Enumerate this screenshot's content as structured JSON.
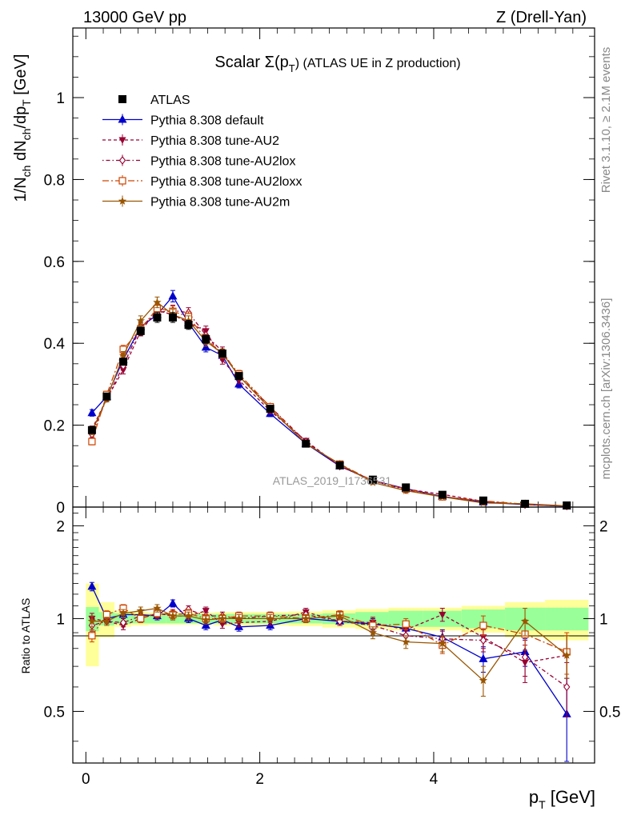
{
  "header": {
    "left": "13000 GeV pp",
    "right": "Z (Drell-Yan)"
  },
  "side_labels": {
    "rivet": "Rivet 3.1.10, ≥ 2.1M events",
    "mcplots": "mcplots.cern.ch [arXiv:1306.3436]"
  },
  "watermark": "ATLAS_2019_I1736531",
  "chart_data": [
    {
      "type": "line",
      "panel": "main",
      "title": "Scalar Σ(p_T) (ATLAS UE in Z production)",
      "title_main": "Scalar Σ(p",
      "title_sub": "T",
      "title_rest": ") (ATLAS UE in Z production)",
      "ylabel": "1/N_ch dN_ch/dp_T [GeV]",
      "xlim": [
        -0.15,
        5.85
      ],
      "ylim": [
        0,
        1.17
      ],
      "yticks": [
        0,
        0.2,
        0.4,
        0.6,
        0.8,
        1
      ],
      "ytick_labels": [
        "0",
        "0.2",
        "0.4",
        "0.6",
        "0.8",
        "1"
      ],
      "x": [
        0.07,
        0.24,
        0.43,
        0.63,
        0.82,
        1.0,
        1.18,
        1.38,
        1.57,
        1.76,
        2.12,
        2.53,
        2.92,
        3.3,
        3.68,
        4.1,
        4.57,
        5.05,
        5.53
      ],
      "series": [
        {
          "name": "ATLAS",
          "color": "#000000",
          "marker": "square-filled",
          "dash": "none",
          "values": [
            0.188,
            0.27,
            0.355,
            0.43,
            0.463,
            0.463,
            0.445,
            0.41,
            0.375,
            0.32,
            0.24,
            0.155,
            0.102,
            0.067,
            0.048,
            0.03,
            0.016,
            0.008,
            0.004
          ],
          "errors": [
            0.005,
            0.005,
            0.008,
            0.01,
            0.012,
            0.012,
            0.011,
            0.01,
            0.009,
            0.008,
            0.006,
            0.004,
            0.003,
            0.002,
            0.002,
            0.001,
            0.001,
            0.0005,
            0.0004
          ]
        },
        {
          "name": "Pythia 8.308 default",
          "color": "#0000cc",
          "marker": "triangle-up",
          "dash": "none",
          "values": [
            0.23,
            0.27,
            0.36,
            0.44,
            0.47,
            0.515,
            0.45,
            0.39,
            0.37,
            0.3,
            0.228,
            0.155,
            0.1,
            0.065,
            0.045,
            0.026,
            0.012,
            0.006,
            0.002
          ],
          "errors": [
            0.008,
            0.008,
            0.01,
            0.012,
            0.013,
            0.014,
            0.012,
            0.011,
            0.011,
            0.009,
            0.007,
            0.005,
            0.003,
            0.002,
            0.002,
            0.001,
            0.001,
            0.0006,
            0.0005
          ]
        },
        {
          "name": "Pythia 8.308 tune-AU2",
          "color": "#990033",
          "marker": "triangle-down",
          "dash": "4,3",
          "values": [
            0.19,
            0.265,
            0.335,
            0.43,
            0.48,
            0.47,
            0.45,
            0.43,
            0.36,
            0.31,
            0.235,
            0.162,
            0.1,
            0.065,
            0.044,
            0.031,
            0.014,
            0.006,
            0.003
          ],
          "errors": [
            0.008,
            0.008,
            0.01,
            0.012,
            0.013,
            0.013,
            0.012,
            0.012,
            0.011,
            0.009,
            0.007,
            0.005,
            0.003,
            0.002,
            0.002,
            0.002,
            0.001,
            0.0006,
            0.0005
          ]
        },
        {
          "name": "Pythia 8.308 tune-AU2lox",
          "color": "#990033",
          "marker": "diamond-open",
          "dash": "1.5,3,5,3",
          "values": [
            0.178,
            0.265,
            0.345,
            0.44,
            0.475,
            0.48,
            0.475,
            0.42,
            0.38,
            0.32,
            0.245,
            0.16,
            0.1,
            0.064,
            0.042,
            0.026,
            0.014,
            0.006,
            0.0025
          ],
          "errors": [
            0.008,
            0.008,
            0.01,
            0.012,
            0.013,
            0.013,
            0.012,
            0.012,
            0.011,
            0.009,
            0.007,
            0.005,
            0.003,
            0.002,
            0.002,
            0.001,
            0.001,
            0.0006,
            0.0005
          ]
        },
        {
          "name": "Pythia 8.308 tune-AU2loxx",
          "color": "#cc4400",
          "marker": "square-open",
          "dash": "8,3,2,3",
          "values": [
            0.16,
            0.275,
            0.385,
            0.435,
            0.485,
            0.478,
            0.465,
            0.41,
            0.375,
            0.325,
            0.245,
            0.155,
            0.105,
            0.064,
            0.044,
            0.025,
            0.015,
            0.007,
            0.003
          ],
          "errors": [
            0.008,
            0.008,
            0.01,
            0.012,
            0.013,
            0.013,
            0.012,
            0.012,
            0.011,
            0.009,
            0.007,
            0.005,
            0.003,
            0.002,
            0.002,
            0.001,
            0.001,
            0.0006,
            0.0005
          ]
        },
        {
          "name": "Pythia 8.308 tune-AU2m",
          "color": "#995500",
          "marker": "star",
          "dash": "none",
          "values": [
            0.185,
            0.265,
            0.37,
            0.455,
            0.5,
            0.47,
            0.455,
            0.405,
            0.375,
            0.32,
            0.24,
            0.155,
            0.105,
            0.06,
            0.04,
            0.025,
            0.01,
            0.008,
            0.003
          ],
          "errors": [
            0.008,
            0.008,
            0.01,
            0.012,
            0.013,
            0.013,
            0.012,
            0.012,
            0.011,
            0.009,
            0.007,
            0.005,
            0.003,
            0.002,
            0.002,
            0.001,
            0.001,
            0.0006,
            0.0005
          ]
        }
      ]
    },
    {
      "type": "line",
      "panel": "ratio",
      "ylabel": "Ratio to ATLAS",
      "xlabel": "p_T [GeV]",
      "xlabel_main": "p",
      "xlabel_sub": "T",
      "xlabel_rest": " [GeV]",
      "xlim": [
        -0.15,
        5.85
      ],
      "ylim": [
        0.34,
        2.3
      ],
      "yticks": [
        0.5,
        1,
        2
      ],
      "ytick_labels": [
        "0.5",
        "1",
        "2"
      ],
      "xticks": [
        0,
        2,
        4
      ],
      "xtick_labels": [
        "0",
        "2",
        "4"
      ],
      "bins": [
        [
          0.0,
          0.15
        ],
        [
          0.15,
          0.33
        ],
        [
          0.33,
          0.52
        ],
        [
          0.52,
          0.72
        ],
        [
          0.72,
          0.92
        ],
        [
          0.92,
          1.08
        ],
        [
          1.08,
          1.28
        ],
        [
          1.28,
          1.48
        ],
        [
          1.48,
          1.67
        ],
        [
          1.67,
          1.9
        ],
        [
          1.9,
          2.33
        ],
        [
          2.33,
          2.72
        ],
        [
          2.72,
          3.1
        ],
        [
          3.1,
          3.48
        ],
        [
          3.48,
          3.88
        ],
        [
          3.88,
          4.32
        ],
        [
          4.32,
          4.82
        ],
        [
          4.82,
          5.28
        ],
        [
          5.28,
          5.78
        ]
      ],
      "band_stat": [
        0.09,
        0.05,
        0.04,
        0.035,
        0.035,
        0.035,
        0.035,
        0.035,
        0.035,
        0.035,
        0.035,
        0.035,
        0.04,
        0.05,
        0.06,
        0.06,
        0.07,
        0.085,
        0.085
      ],
      "band_total": [
        0.3,
        0.13,
        0.06,
        0.05,
        0.045,
        0.045,
        0.045,
        0.045,
        0.05,
        0.05,
        0.05,
        0.055,
        0.065,
        0.075,
        0.085,
        0.085,
        0.1,
        0.13,
        0.15
      ],
      "series": [
        {
          "name": "Pythia 8.308 default",
          "color": "#0000cc",
          "marker": "triangle-up",
          "dash": "none",
          "values": [
            1.27,
            1.0,
            1.03,
            1.03,
            1.02,
            1.12,
            1.0,
            0.95,
            0.99,
            0.94,
            0.95,
            1.0,
            0.98,
            0.96,
            0.93,
            0.87,
            0.74,
            0.78,
            0.49
          ],
          "errors": [
            0.04,
            0.03,
            0.03,
            0.03,
            0.03,
            0.03,
            0.03,
            0.03,
            0.03,
            0.03,
            0.03,
            0.03,
            0.03,
            0.04,
            0.04,
            0.05,
            0.07,
            0.08,
            0.15
          ]
        },
        {
          "name": "Pythia 8.308 tune-AU2",
          "color": "#990033",
          "marker": "triangle-down",
          "dash": "4,3",
          "values": [
            1.0,
            0.98,
            0.95,
            1.0,
            1.04,
            1.02,
            1.02,
            1.06,
            0.96,
            0.97,
            0.98,
            1.05,
            0.98,
            0.97,
            0.92,
            1.03,
            0.87,
            0.72,
            0.76
          ],
          "errors": [
            0.04,
            0.03,
            0.03,
            0.03,
            0.03,
            0.03,
            0.03,
            0.03,
            0.03,
            0.03,
            0.03,
            0.03,
            0.03,
            0.04,
            0.04,
            0.05,
            0.07,
            0.1,
            0.12
          ]
        },
        {
          "name": "Pythia 8.308 tune-AU2lox",
          "color": "#990033",
          "marker": "diamond-open",
          "dash": "1.5,3,5,3",
          "values": [
            0.95,
            0.98,
            0.97,
            1.02,
            1.03,
            1.04,
            1.07,
            1.02,
            1.02,
            1.0,
            1.02,
            1.03,
            0.98,
            0.95,
            0.88,
            0.86,
            0.85,
            0.75,
            0.6
          ],
          "errors": [
            0.04,
            0.03,
            0.03,
            0.03,
            0.03,
            0.03,
            0.03,
            0.03,
            0.03,
            0.03,
            0.03,
            0.03,
            0.03,
            0.04,
            0.04,
            0.05,
            0.07,
            0.1,
            0.12
          ]
        },
        {
          "name": "Pythia 8.308 tune-AU2loxx",
          "color": "#cc4400",
          "marker": "square-open",
          "dash": "8,3,2,3",
          "values": [
            0.88,
            1.03,
            1.08,
            1.0,
            1.04,
            1.03,
            1.04,
            1.0,
            1.0,
            1.02,
            1.02,
            1.0,
            1.03,
            0.95,
            0.96,
            0.82,
            0.95,
            0.89,
            0.78
          ],
          "errors": [
            0.04,
            0.03,
            0.03,
            0.03,
            0.03,
            0.03,
            0.03,
            0.03,
            0.03,
            0.03,
            0.03,
            0.03,
            0.03,
            0.04,
            0.04,
            0.05,
            0.07,
            0.1,
            0.12
          ]
        },
        {
          "name": "Pythia 8.308 tune-AU2m",
          "color": "#995500",
          "marker": "star",
          "dash": "none",
          "values": [
            0.98,
            0.98,
            1.04,
            1.06,
            1.08,
            1.02,
            1.02,
            0.99,
            1.0,
            1.0,
            1.0,
            1.0,
            1.02,
            0.9,
            0.84,
            0.83,
            0.63,
            0.98,
            0.76
          ],
          "errors": [
            0.04,
            0.03,
            0.03,
            0.03,
            0.03,
            0.03,
            0.03,
            0.03,
            0.03,
            0.03,
            0.03,
            0.03,
            0.03,
            0.04,
            0.04,
            0.05,
            0.07,
            0.1,
            0.12
          ]
        }
      ]
    }
  ],
  "colors": {
    "band_stat": "#99ff99",
    "band_total": "#ffff99"
  }
}
